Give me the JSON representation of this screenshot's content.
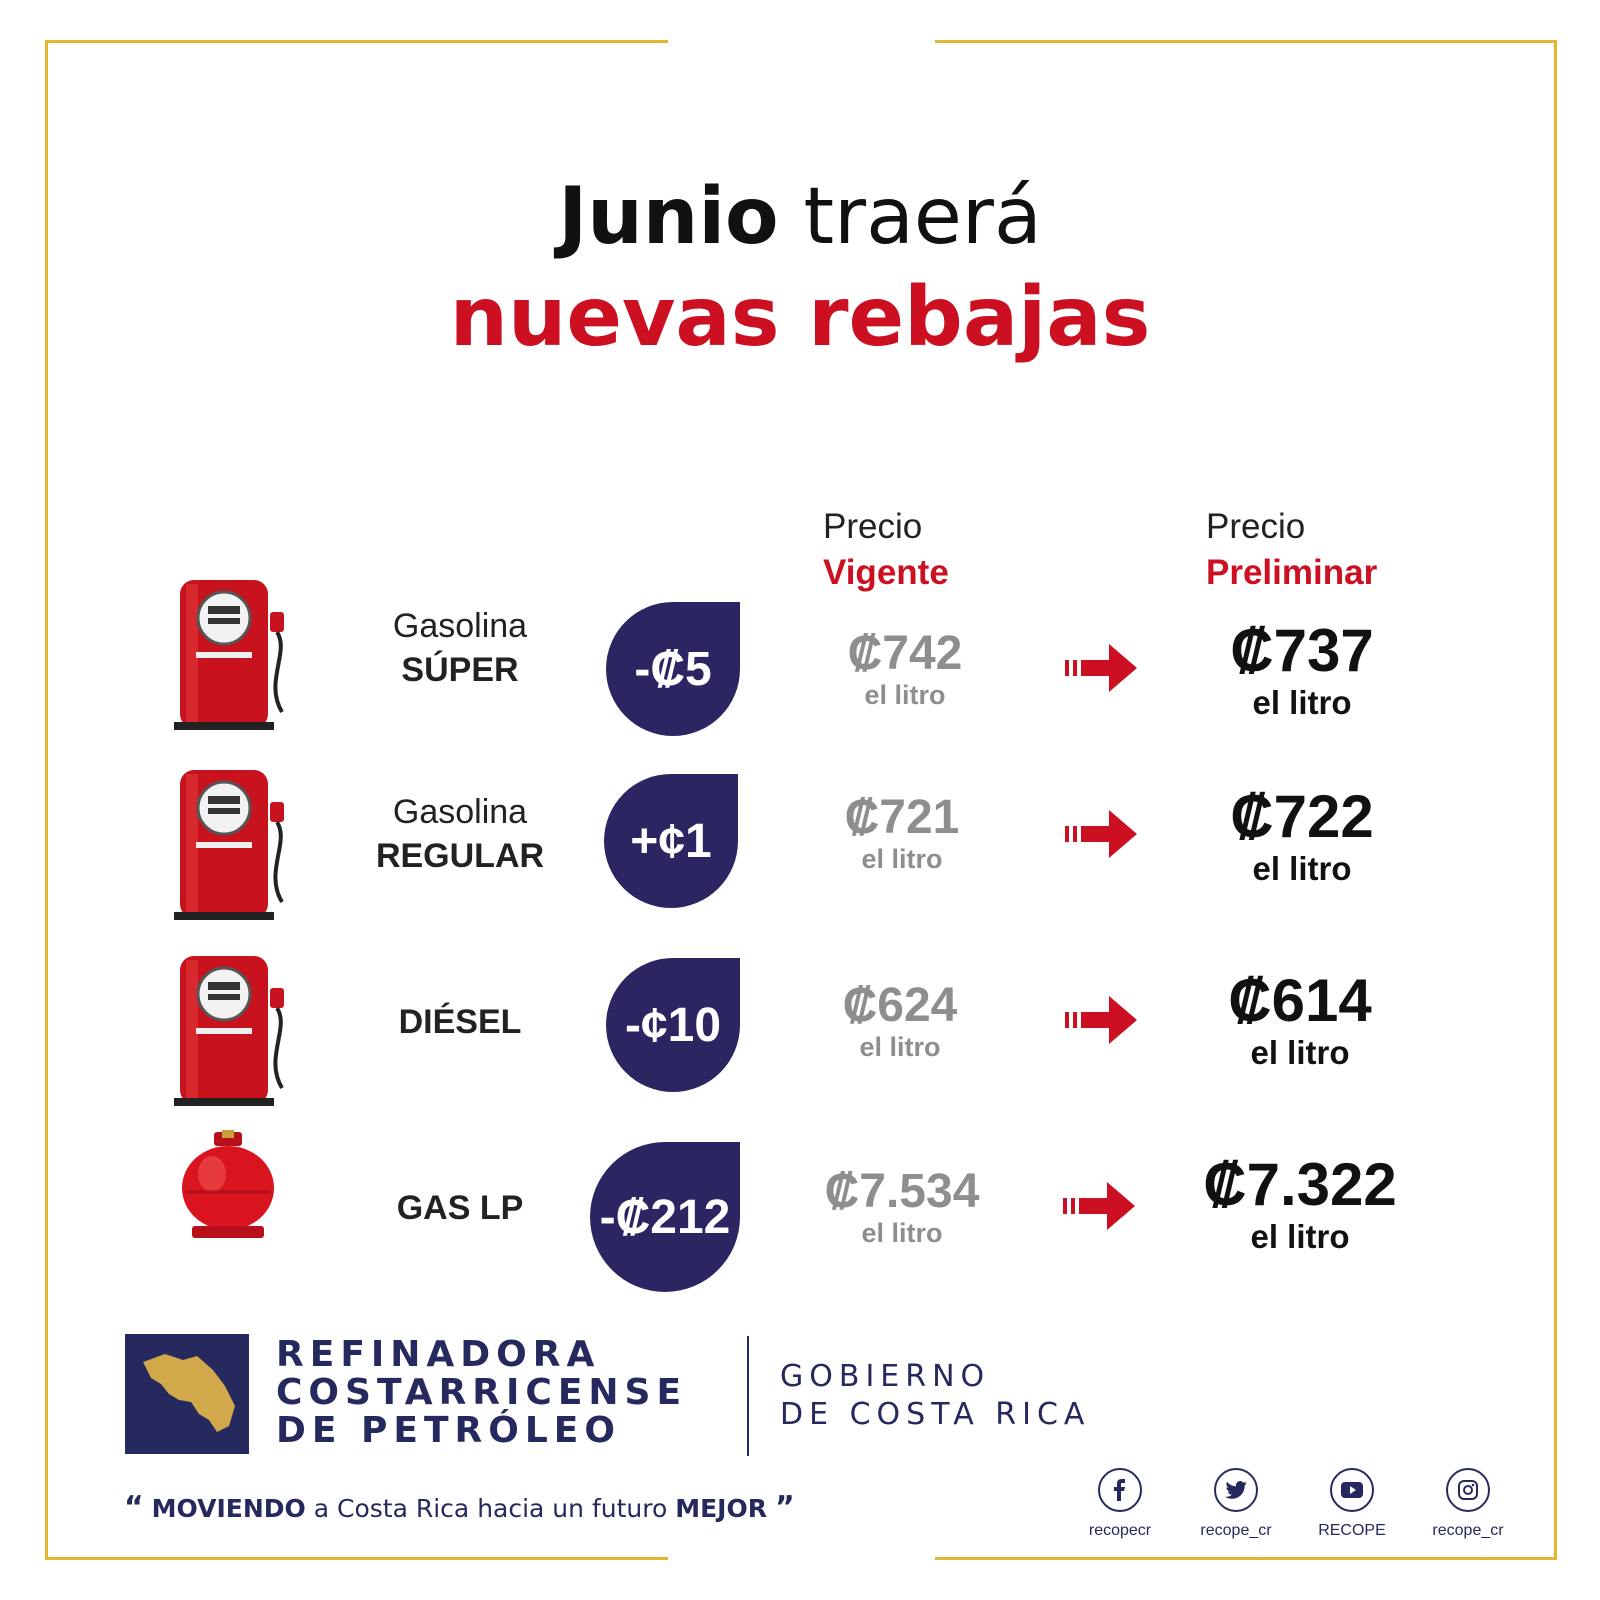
{
  "colors": {
    "frame": "#e4b52f",
    "accent_red": "#cc0f21",
    "navy": "#2b2562",
    "gray": "#8e8e8e"
  },
  "title": {
    "bold": "Junio",
    "regular": "traerá",
    "line2": "nuevas rebajas"
  },
  "columns": {
    "current": {
      "top": "Precio",
      "bottom": "Vigente"
    },
    "preliminary": {
      "top": "Precio",
      "bottom": "Preliminar"
    }
  },
  "rows": [
    {
      "icon": "fuel-pump-icon",
      "name_light": "Gasolina",
      "name_bold": "SÚPER",
      "change": "-₡5",
      "current_price": "₡742",
      "current_unit": "el litro",
      "new_price": "₡737",
      "new_unit": "el litro"
    },
    {
      "icon": "fuel-pump-icon",
      "name_light": "Gasolina",
      "name_bold": "REGULAR",
      "change": "+¢1",
      "current_price": "₡721",
      "current_unit": "el litro",
      "new_price": "₡722",
      "new_unit": "el litro"
    },
    {
      "icon": "fuel-pump-icon",
      "name_light": "",
      "name_bold": "DIÉSEL",
      "change": "-¢10",
      "current_price": "₡624",
      "current_unit": "el litro",
      "new_price": "₡614",
      "new_unit": "el litro"
    },
    {
      "icon": "gas-cylinder-icon",
      "name_light": "",
      "name_bold": "GAS LP",
      "change": "-₡212",
      "current_price": "₡7.534",
      "current_unit": "el litro",
      "new_price": "₡7.322",
      "new_unit": "el litro"
    }
  ],
  "footer": {
    "org_lines": [
      "REFINADORA",
      "COSTARRICENSE",
      "DE PETRÓLEO"
    ],
    "gov_lines": [
      "GOBIERNO",
      "DE COSTA RICA"
    ],
    "slogan": {
      "open_quote": "“",
      "w1": "MOVIENDO",
      "w2": "a Costa Rica hacia un futuro",
      "w3": "MEJOR",
      "close_quote": "”"
    },
    "social": [
      {
        "icon": "facebook-icon",
        "label": "recopecr"
      },
      {
        "icon": "twitter-icon",
        "label": "recope_cr"
      },
      {
        "icon": "youtube-icon",
        "label": "RECOPE"
      },
      {
        "icon": "instagram-icon",
        "label": "recope_cr"
      }
    ]
  }
}
